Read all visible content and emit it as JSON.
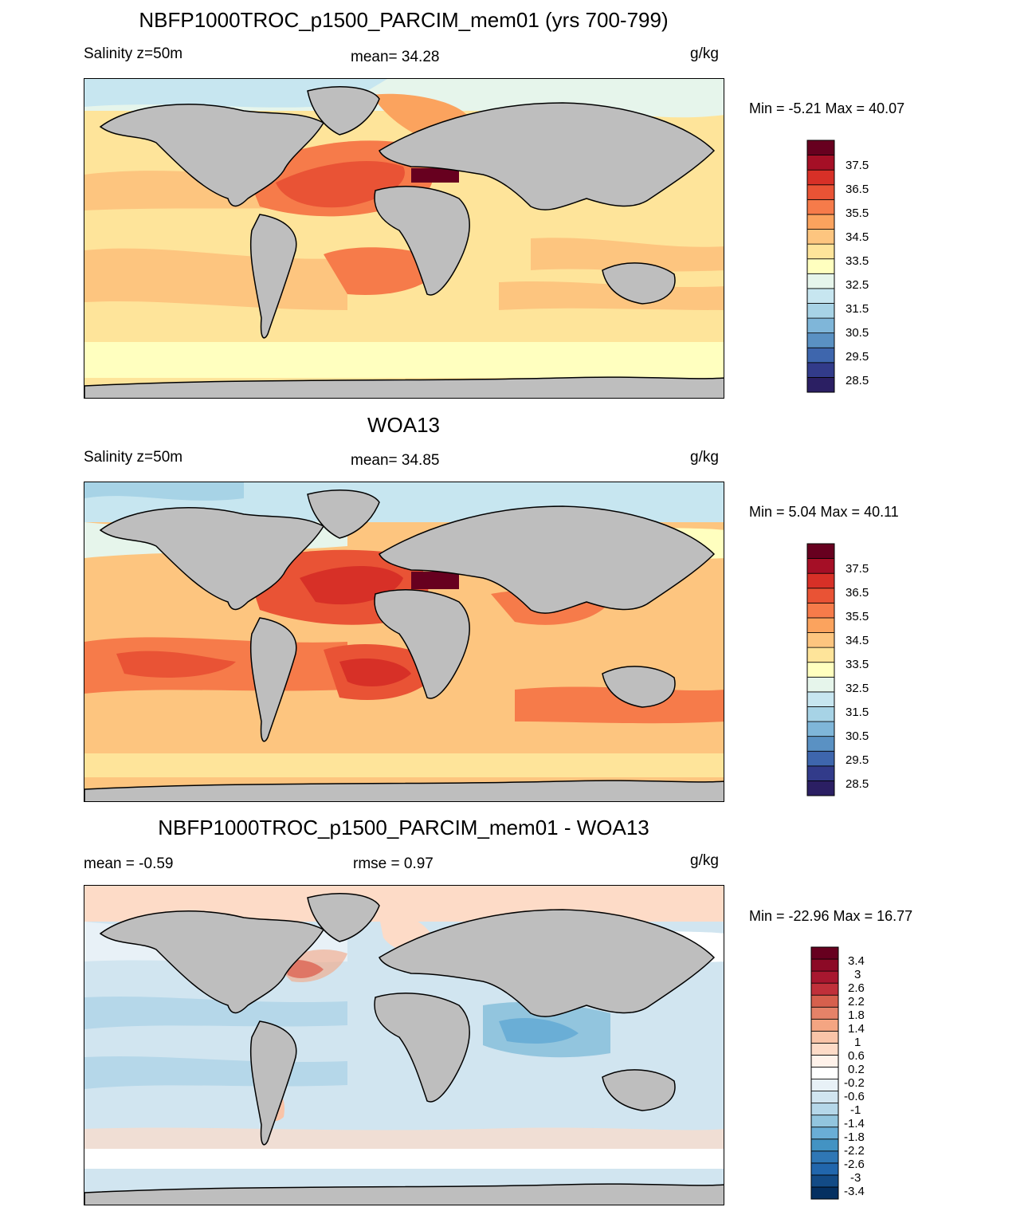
{
  "panels": [
    {
      "title": "NBFP1000TROC_p1500_PARCIM_mem01 (yrs 700-799)",
      "left_label": "Salinity z=50m",
      "center_label": "mean=  34.28",
      "units": "g/kg",
      "minmax": "Min =  -5.21 Max =  40.07"
    },
    {
      "title": "WOA13",
      "left_label": "Salinity z=50m",
      "center_label": "mean=  34.85",
      "units": "g/kg",
      "minmax": "Min =   5.04 Max =  40.11"
    },
    {
      "title": "NBFP1000TROC_p1500_PARCIM_mem01 - WOA13",
      "left_label": "mean =  -0.59",
      "center_label": "rmse =   0.97",
      "units": "g/kg",
      "minmax": "Min = -22.96 Max =  16.77"
    }
  ],
  "chart_data": [
    {
      "type": "heatmap",
      "title": "NBFP1000TROC_p1500_PARCIM_mem01 (yrs 700-799)",
      "variable": "Salinity z=50m",
      "units": "g/kg",
      "mean": 34.28,
      "min": -5.21,
      "max": 40.07,
      "colorbar_labels": [
        "37.5",
        "36.5",
        "35.5",
        "34.5",
        "33.5",
        "32.5",
        "31.5",
        "30.5",
        "29.5",
        "28.5"
      ],
      "colorbar_colors": [
        "#67001f",
        "#a50f26",
        "#d73027",
        "#e95335",
        "#f67b4a",
        "#fba35e",
        "#fdc57f",
        "#fee49a",
        "#ffffbf",
        "#e6f5eb",
        "#c7e6f0",
        "#a7d3e6",
        "#7fb6d9",
        "#5a91c3",
        "#3e66ad",
        "#323b8a",
        "#2b1f63"
      ],
      "land_color": "#bebebe"
    },
    {
      "type": "heatmap",
      "title": "WOA13",
      "variable": "Salinity z=50m",
      "units": "g/kg",
      "mean": 34.85,
      "min": 5.04,
      "max": 40.11,
      "colorbar_labels": [
        "37.5",
        "36.5",
        "35.5",
        "34.5",
        "33.5",
        "32.5",
        "31.5",
        "30.5",
        "29.5",
        "28.5"
      ],
      "colorbar_colors": [
        "#67001f",
        "#a50f26",
        "#d73027",
        "#e95335",
        "#f67b4a",
        "#fba35e",
        "#fdc57f",
        "#fee49a",
        "#ffffbf",
        "#e6f5eb",
        "#c7e6f0",
        "#a7d3e6",
        "#7fb6d9",
        "#5a91c3",
        "#3e66ad",
        "#323b8a",
        "#2b1f63"
      ],
      "land_color": "#bebebe"
    },
    {
      "type": "heatmap",
      "title": "NBFP1000TROC_p1500_PARCIM_mem01 - WOA13",
      "units": "g/kg",
      "mean": -0.59,
      "rmse": 0.97,
      "min": -22.96,
      "max": 16.77,
      "colorbar_labels": [
        "3.4",
        "3",
        "2.6",
        "2.2",
        "1.8",
        "1.4",
        "1",
        "0.6",
        "0.2",
        "-0.2",
        "-0.6",
        "-1",
        "-1.4",
        "-1.8",
        "-2.2",
        "-2.6",
        "-3",
        "-3.4"
      ],
      "colorbar_colors": [
        "#67001f",
        "#8c0a26",
        "#a8172f",
        "#c0303a",
        "#d6604d",
        "#e58268",
        "#f4a582",
        "#f9c4a8",
        "#fddbc7",
        "#fff2ea",
        "#ffffff",
        "#e8f1f7",
        "#d1e5f0",
        "#b5d7e9",
        "#92c5de",
        "#6aaed6",
        "#4393c3",
        "#2f77b5",
        "#2166ac",
        "#134b86",
        "#053061"
      ],
      "land_color": "#bebebe"
    }
  ]
}
